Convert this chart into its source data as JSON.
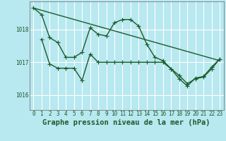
{
  "title": "Graphe pression niveau de la mer (hPa)",
  "background_color": "#b8e8f0",
  "grid_color": "#ffffff",
  "line_color": "#1a5c2a",
  "xlim": [
    -0.5,
    23.5
  ],
  "ylim": [
    1015.55,
    1018.85
  ],
  "yticks": [
    1016,
    1017,
    1018
  ],
  "xticks": [
    0,
    1,
    2,
    3,
    4,
    5,
    6,
    7,
    8,
    9,
    10,
    11,
    12,
    13,
    14,
    15,
    16,
    17,
    18,
    19,
    20,
    21,
    22,
    23
  ],
  "series1_x": [
    0,
    1,
    2,
    3,
    4,
    5,
    6,
    7,
    8,
    9,
    10,
    11,
    12,
    13,
    14,
    15,
    16,
    17,
    18,
    19,
    20,
    21,
    22,
    23
  ],
  "series1_y": [
    1018.65,
    1018.45,
    1017.75,
    1017.6,
    1017.15,
    1017.15,
    1017.3,
    1018.05,
    1017.85,
    1017.8,
    1018.2,
    1018.3,
    1018.3,
    1018.1,
    1017.55,
    1017.15,
    1017.05,
    1016.8,
    1016.6,
    1016.35,
    1016.5,
    1016.55,
    1016.8,
    1017.1
  ],
  "series2_x": [
    1,
    2,
    3,
    4,
    5,
    6,
    7,
    8,
    9,
    10,
    11,
    12,
    13,
    14,
    15,
    16,
    17,
    18,
    19,
    20,
    21,
    22,
    23
  ],
  "series2_y": [
    1017.7,
    1016.95,
    1016.82,
    1016.82,
    1016.82,
    1016.45,
    1017.25,
    1017.0,
    1017.0,
    1017.0,
    1017.0,
    1017.0,
    1017.0,
    1017.0,
    1017.0,
    1017.0,
    1016.8,
    1016.5,
    1016.28,
    1016.52,
    1016.57,
    1016.85,
    1017.1
  ],
  "series3_x": [
    0,
    23
  ],
  "series3_y": [
    1018.65,
    1017.05
  ],
  "marker": "+",
  "markersize": 4,
  "linewidth": 1.0,
  "title_fontsize": 7.5,
  "tick_fontsize": 5.5
}
